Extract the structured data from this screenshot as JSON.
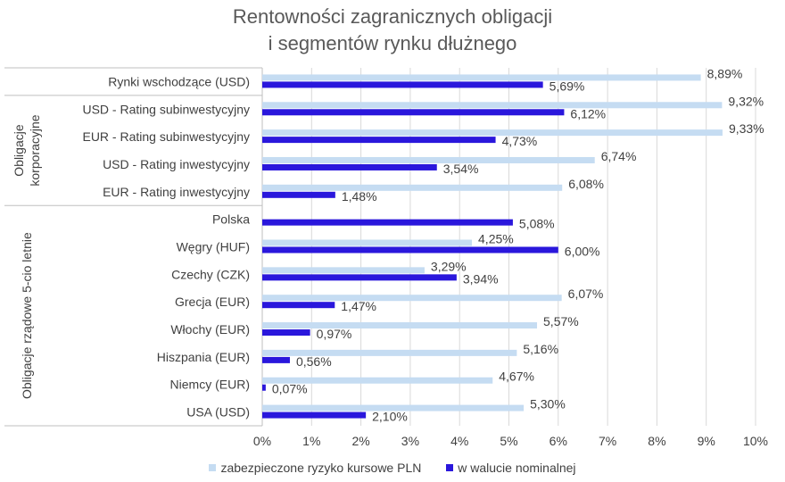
{
  "chart_data": {
    "type": "bar",
    "orientation": "horizontal",
    "title": [
      "Rentowności zagranicznych obligacji",
      "i segmentów rynku dłużnego"
    ],
    "categories": [
      "Rynki wschodzące (USD)",
      "USD - Rating subinwestycyjny",
      "EUR - Rating subinwestycyjny",
      "USD - Rating inwestycyjny",
      "EUR - Rating inwestycyjny",
      "Polska",
      "Węgry (HUF)",
      "Czechy (CZK)",
      "Grecja (EUR)",
      "Włochy (EUR)",
      "Hiszpania (EUR)",
      "Niemcy (EUR)",
      "USA (USD)"
    ],
    "groups": [
      {
        "label": "Obligacje korporacyjne",
        "lines": [
          "Obligacje",
          "korporacyjne"
        ],
        "start": 1,
        "end": 4
      },
      {
        "label": "Obligacje rządowe 5-cio letnie",
        "lines": [
          "Obligacje rządowe 5-cio letnie"
        ],
        "start": 5,
        "end": 12
      }
    ],
    "series": [
      {
        "name": "zabezpieczone ryzyko kursowe PLN",
        "color": "#c5dcf2",
        "values": [
          8.89,
          9.32,
          9.33,
          6.74,
          6.08,
          null,
          4.25,
          3.29,
          6.07,
          5.57,
          5.16,
          4.67,
          5.3
        ],
        "labels": [
          "8,89%",
          "9,32%",
          "9,33%",
          "6,74%",
          "6,08%",
          "",
          "4,25%",
          "3,29%",
          "6,07%",
          "5,57%",
          "5,16%",
          "4,67%",
          "5,30%"
        ]
      },
      {
        "name": "w walucie nominalnej",
        "color": "#2a17dc",
        "values": [
          5.69,
          6.12,
          4.73,
          3.54,
          1.48,
          5.08,
          6.0,
          3.94,
          1.47,
          0.97,
          0.56,
          0.07,
          2.1
        ],
        "labels": [
          "5,69%",
          "6,12%",
          "4,73%",
          "3,54%",
          "1,48%",
          "5,08%",
          "6,00%",
          "3,94%",
          "1,47%",
          "0,97%",
          "0,56%",
          "0,07%",
          "2,10%"
        ]
      }
    ],
    "xlim": [
      0,
      10
    ],
    "xticks": [
      "0%",
      "1%",
      "2%",
      "3%",
      "4%",
      "5%",
      "6%",
      "7%",
      "8%",
      "9%",
      "10%"
    ],
    "grid": true,
    "legend": "bottom"
  }
}
